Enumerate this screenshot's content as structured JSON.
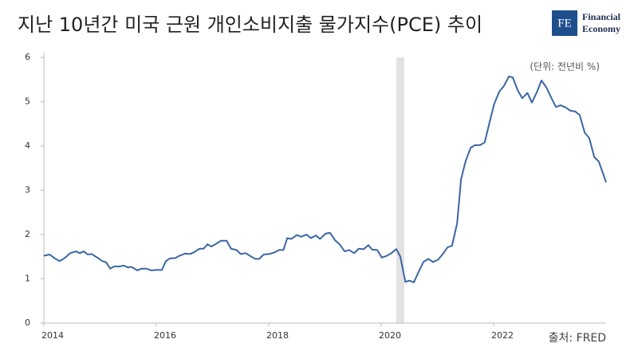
{
  "chart_data": {
    "type": "line",
    "title": "지난 10년간 미국 근원 개인소비지출 물가지수(PCE) 추이",
    "unit_note": "(단위: 전년비 %)",
    "source": "출처: FRED",
    "logo": {
      "mark": "FE",
      "line1": "Financial",
      "line2": "Economy"
    },
    "color": "#3b66a3",
    "shade_color": "#e2e2e2",
    "shaded_band": [
      2020.27,
      2020.41
    ],
    "xlim": [
      2014,
      2024
    ],
    "xticks": [
      2014,
      2016,
      2018,
      2020,
      2022
    ],
    "ylim": [
      0,
      6
    ],
    "yticks": [
      0,
      1,
      2,
      3,
      4,
      5,
      6
    ],
    "x": [
      2014.0,
      2014.1,
      2014.21,
      2014.28,
      2014.35,
      2014.47,
      2014.57,
      2014.64,
      2014.71,
      2014.78,
      2014.85,
      2014.95,
      2015.04,
      2015.11,
      2015.18,
      2015.25,
      2015.35,
      2015.42,
      2015.49,
      2015.56,
      2015.66,
      2015.74,
      2015.82,
      2015.91,
      2015.99,
      2016.1,
      2016.17,
      2016.24,
      2016.34,
      2016.41,
      2016.51,
      2016.6,
      2016.67,
      2016.77,
      2016.84,
      2016.91,
      2016.98,
      2017.05,
      2017.15,
      2017.25,
      2017.33,
      2017.43,
      2017.5,
      2017.59,
      2017.69,
      2017.76,
      2017.83,
      2017.91,
      2018.01,
      2018.11,
      2018.18,
      2018.26,
      2018.33,
      2018.4,
      2018.5,
      2018.58,
      2018.67,
      2018.75,
      2018.84,
      2018.91,
      2019.01,
      2019.09,
      2019.18,
      2019.26,
      2019.35,
      2019.43,
      2019.52,
      2019.6,
      2019.69,
      2019.77,
      2019.84,
      2019.93,
      2020.01,
      2020.1,
      2020.18,
      2020.27,
      2020.34,
      2020.43,
      2020.5,
      2020.58,
      2020.67,
      2020.75,
      2020.84,
      2020.92,
      2021.01,
      2021.09,
      2021.18,
      2021.26,
      2021.35,
      2021.42,
      2021.5,
      2021.59,
      2021.67,
      2021.76,
      2021.84,
      2021.93,
      2022.01,
      2022.1,
      2022.18,
      2022.27,
      2022.34,
      2022.43,
      2022.51,
      2022.6,
      2022.68,
      2022.77,
      2022.85,
      2022.94,
      2023.02,
      2023.11,
      2023.19,
      2023.28,
      2023.36,
      2023.45,
      2023.53,
      2023.62,
      2023.7,
      2023.79,
      2023.87,
      2024.0
    ],
    "values": [
      1.52,
      1.55,
      1.45,
      1.4,
      1.45,
      1.58,
      1.62,
      1.58,
      1.62,
      1.55,
      1.56,
      1.48,
      1.4,
      1.37,
      1.23,
      1.28,
      1.28,
      1.3,
      1.26,
      1.27,
      1.19,
      1.23,
      1.23,
      1.19,
      1.2,
      1.2,
      1.4,
      1.46,
      1.47,
      1.52,
      1.57,
      1.56,
      1.6,
      1.68,
      1.68,
      1.78,
      1.73,
      1.78,
      1.86,
      1.86,
      1.68,
      1.65,
      1.56,
      1.58,
      1.5,
      1.45,
      1.45,
      1.55,
      1.56,
      1.6,
      1.65,
      1.65,
      1.92,
      1.9,
      1.99,
      1.95,
      2.0,
      1.92,
      1.98,
      1.9,
      2.02,
      2.04,
      1.87,
      1.78,
      1.62,
      1.65,
      1.58,
      1.68,
      1.67,
      1.76,
      1.66,
      1.65,
      1.48,
      1.52,
      1.58,
      1.67,
      1.5,
      0.93,
      0.96,
      0.92,
      1.17,
      1.38,
      1.45,
      1.38,
      1.43,
      1.55,
      1.71,
      1.75,
      2.25,
      3.25,
      3.65,
      3.96,
      4.02,
      4.02,
      4.08,
      4.55,
      4.95,
      5.23,
      5.35,
      5.57,
      5.55,
      5.25,
      5.08,
      5.2,
      4.98,
      5.22,
      5.48,
      5.32,
      5.1,
      4.88,
      4.92,
      4.87,
      4.8,
      4.78,
      4.7,
      4.3,
      4.18,
      3.75,
      3.65,
      3.18
    ]
  }
}
